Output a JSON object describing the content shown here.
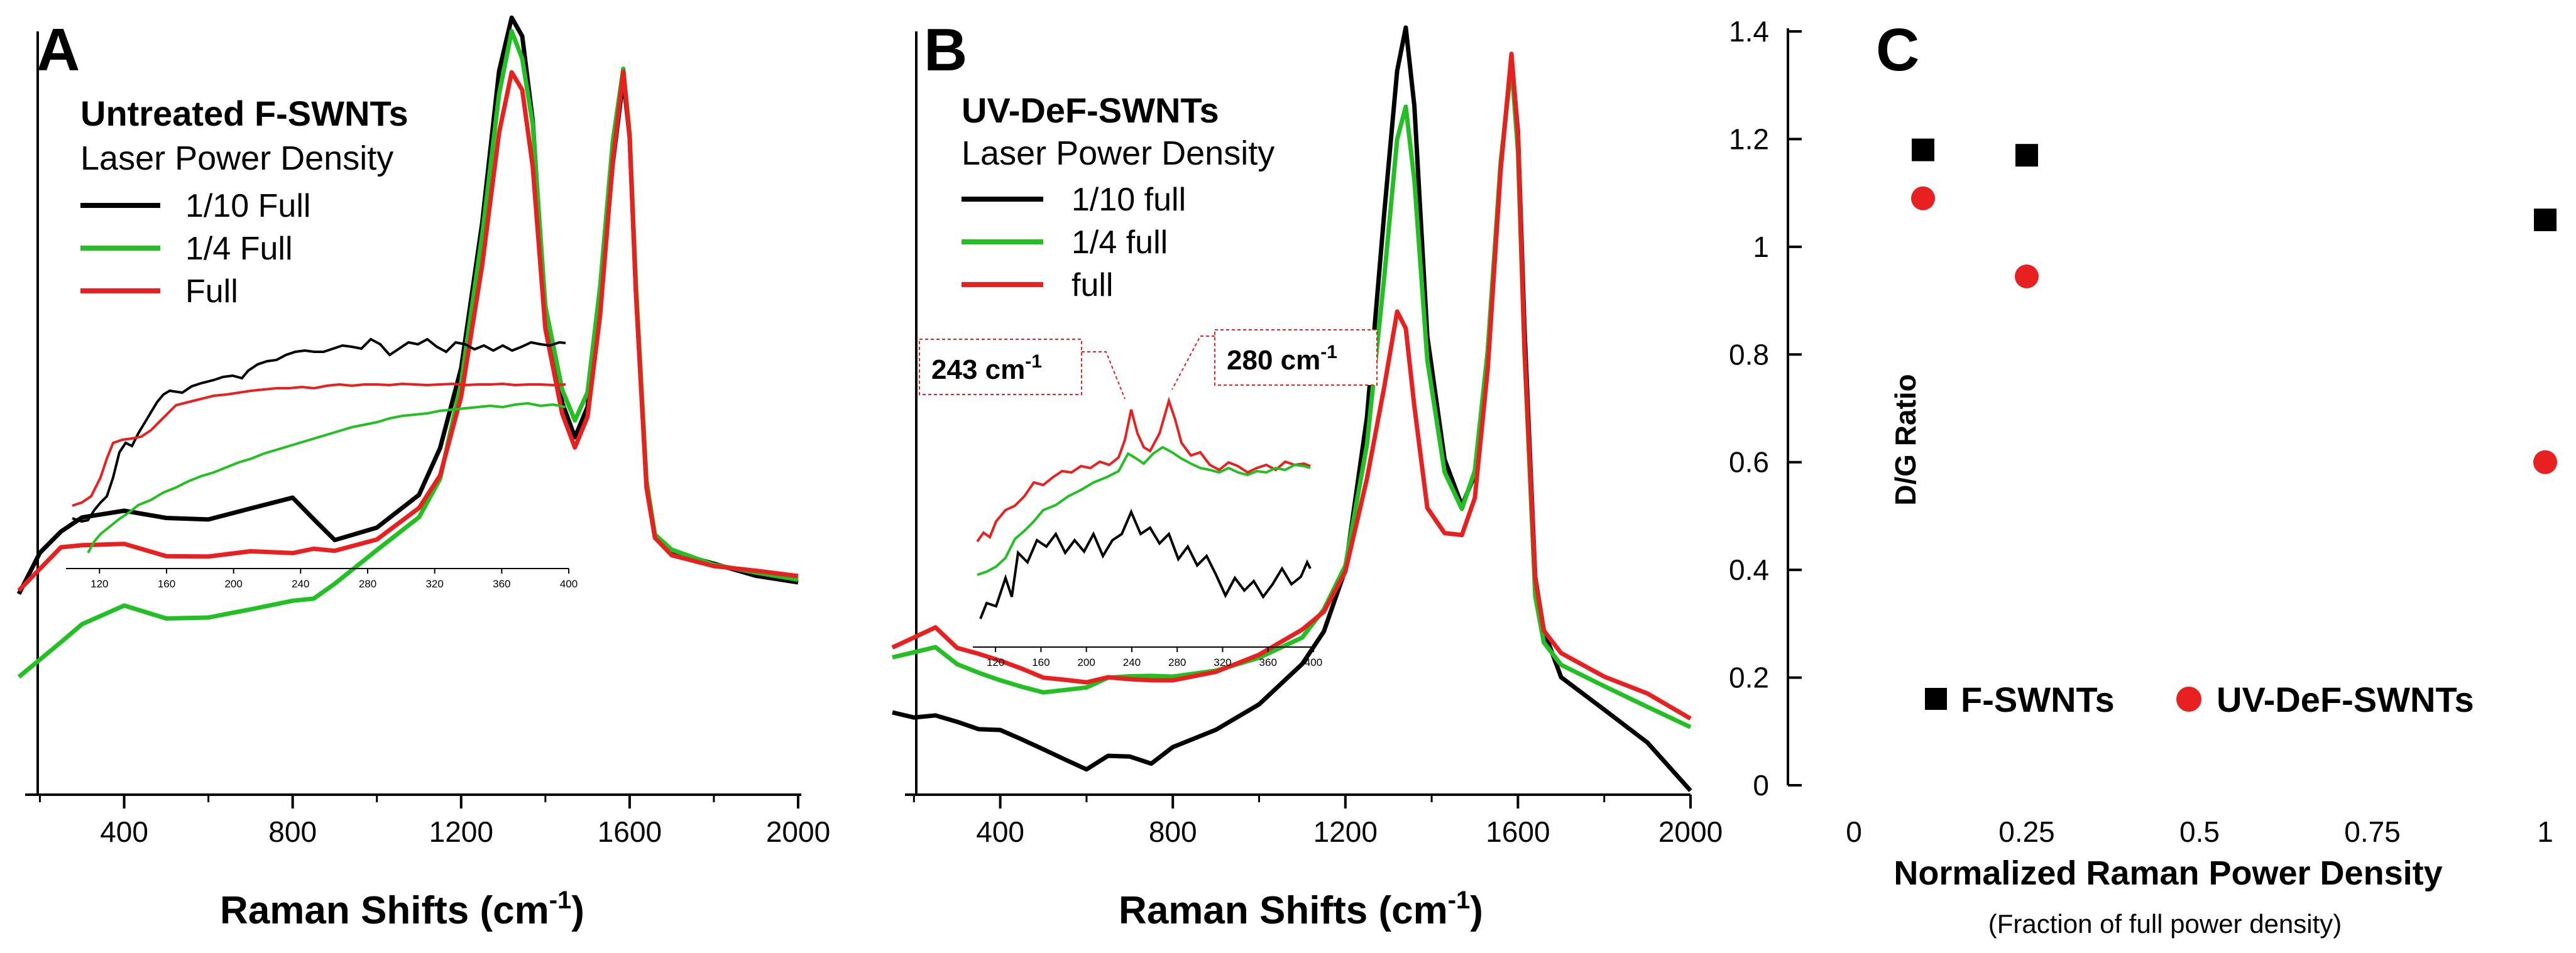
{
  "chart_data": [
    {
      "panel": "A",
      "type": "line",
      "title": "Untreated F-SWNTs",
      "legend_title": "Laser Power Density",
      "xlabel": "Raman Shifts (cm",
      "xlabel_sup": "-1",
      "xlabel_close": ")",
      "xlim": [
        150,
        2000
      ],
      "xticks": [
        "400",
        "800",
        "1200",
        "1600",
        "2000"
      ],
      "legend": [
        {
          "label": "1/10 Full",
          "color": "#000000"
        },
        {
          "label": "1/4 Full",
          "color": "#22c022"
        },
        {
          "label": "Full",
          "color": "#e82020"
        }
      ],
      "series": [
        {
          "name": "1/10 Full",
          "color": "#000000",
          "x": [
            150,
            200,
            250,
            300,
            400,
            500,
            600,
            700,
            800,
            850,
            900,
            1000,
            1100,
            1150,
            1200,
            1250,
            1290,
            1320,
            1345,
            1370,
            1400,
            1440,
            1470,
            1500,
            1530,
            1560,
            1585,
            1600,
            1615,
            1640,
            1660,
            1700,
            1800,
            1900,
            2000
          ],
          "y": [
            0.13,
            0.19,
            0.22,
            0.24,
            0.25,
            0.24,
            0.24,
            0.26,
            0.28,
            0.25,
            0.22,
            0.24,
            0.29,
            0.36,
            0.48,
            0.7,
            0.93,
            1.01,
            0.98,
            0.85,
            0.55,
            0.42,
            0.37,
            0.42,
            0.58,
            0.8,
            0.93,
            0.84,
            0.6,
            0.3,
            0.22,
            0.19,
            0.17,
            0.15,
            0.14
          ]
        },
        {
          "name": "1/4 Full",
          "color": "#22c022",
          "x": [
            150,
            200,
            250,
            300,
            400,
            500,
            600,
            700,
            800,
            850,
            900,
            1000,
            1100,
            1150,
            1200,
            1250,
            1290,
            1320,
            1345,
            1370,
            1400,
            1440,
            1470,
            1500,
            1530,
            1560,
            1585,
            1600,
            1615,
            1640,
            1660,
            1700,
            1800,
            1900,
            2000
          ],
          "y": [
            0.0,
            0.03,
            0.06,
            0.09,
            0.12,
            0.1,
            0.1,
            0.11,
            0.12,
            0.12,
            0.14,
            0.19,
            0.24,
            0.3,
            0.45,
            0.68,
            0.9,
            1.0,
            0.96,
            0.86,
            0.58,
            0.45,
            0.4,
            0.44,
            0.6,
            0.82,
            0.93,
            0.83,
            0.6,
            0.3,
            0.22,
            0.2,
            0.18,
            0.17,
            0.16
          ]
        },
        {
          "name": "Full",
          "color": "#e82020",
          "x": [
            150,
            200,
            250,
            300,
            400,
            500,
            600,
            700,
            800,
            850,
            900,
            1000,
            1100,
            1150,
            1200,
            1250,
            1290,
            1320,
            1345,
            1370,
            1400,
            1440,
            1470,
            1500,
            1530,
            1560,
            1585,
            1600,
            1615,
            1640,
            1660,
            1700,
            1800,
            1900,
            2000
          ],
          "y": [
            0.14,
            0.17,
            0.2,
            0.2,
            0.2,
            0.18,
            0.18,
            0.19,
            0.19,
            0.2,
            0.2,
            0.22,
            0.27,
            0.32,
            0.44,
            0.64,
            0.84,
            0.93,
            0.9,
            0.78,
            0.53,
            0.4,
            0.35,
            0.4,
            0.56,
            0.8,
            0.94,
            0.84,
            0.6,
            0.3,
            0.22,
            0.19,
            0.17,
            0.16,
            0.15
          ]
        }
      ],
      "inset": {
        "xticks": [
          "120",
          "160",
          "200",
          "240",
          "280",
          "320",
          "360",
          "400"
        ],
        "xlim": [
          100,
          400
        ]
      }
    },
    {
      "panel": "B",
      "type": "line",
      "title": "UV-DeF-SWNTs",
      "legend_title": "Laser Power Density",
      "xlabel": "Raman Shifts (cm",
      "xlabel_sup": "-1",
      "xlabel_close": ")",
      "xlim": [
        150,
        2000
      ],
      "xticks": [
        "400",
        "800",
        "1200",
        "1600",
        "2000"
      ],
      "legend": [
        {
          "label": "1/10 full",
          "color": "#000000"
        },
        {
          "label": "1/4 full",
          "color": "#22c022"
        },
        {
          "label": "full",
          "color": "#e82020"
        }
      ],
      "annotations": [
        "243 cm",
        "280 cm"
      ],
      "annotation_sup": "-1",
      "series": [
        {
          "name": "1/10 full",
          "color": "#000000",
          "x": [
            150,
            200,
            250,
            300,
            350,
            400,
            450,
            500,
            550,
            600,
            650,
            700,
            750,
            800,
            900,
            1000,
            1100,
            1150,
            1200,
            1250,
            1290,
            1320,
            1340,
            1360,
            1390,
            1430,
            1470,
            1500,
            1530,
            1560,
            1585,
            1600,
            1615,
            1640,
            1660,
            1700,
            1800,
            1900,
            2000
          ],
          "y": [
            0.1,
            0.09,
            0.09,
            0.08,
            0.07,
            0.07,
            0.06,
            0.05,
            0.04,
            0.03,
            0.05,
            0.05,
            0.04,
            0.06,
            0.08,
            0.11,
            0.16,
            0.2,
            0.28,
            0.48,
            0.75,
            0.94,
            1.0,
            0.9,
            0.6,
            0.44,
            0.38,
            0.42,
            0.58,
            0.82,
            0.96,
            0.86,
            0.6,
            0.27,
            0.2,
            0.14,
            0.1,
            0.06,
            0.0
          ]
        },
        {
          "name": "1/4 full",
          "color": "#22c022",
          "x": [
            150,
            200,
            250,
            300,
            350,
            400,
            450,
            500,
            550,
            600,
            650,
            700,
            750,
            800,
            900,
            1000,
            1100,
            1150,
            1200,
            1250,
            1290,
            1320,
            1340,
            1360,
            1390,
            1430,
            1470,
            1500,
            1530,
            1560,
            1585,
            1600,
            1615,
            1640,
            1660,
            1700,
            1800,
            1900,
            2000
          ],
          "y": [
            0.17,
            0.18,
            0.19,
            0.17,
            0.16,
            0.15,
            0.14,
            0.13,
            0.13,
            0.13,
            0.14,
            0.14,
            0.14,
            0.14,
            0.15,
            0.17,
            0.2,
            0.24,
            0.3,
            0.46,
            0.68,
            0.86,
            0.9,
            0.8,
            0.56,
            0.41,
            0.36,
            0.41,
            0.57,
            0.82,
            0.95,
            0.84,
            0.58,
            0.26,
            0.2,
            0.17,
            0.14,
            0.11,
            0.08
          ]
        },
        {
          "name": "full",
          "color": "#e82020",
          "x": [
            150,
            200,
            250,
            300,
            350,
            400,
            450,
            500,
            550,
            600,
            650,
            700,
            750,
            800,
            900,
            1000,
            1100,
            1150,
            1200,
            1250,
            1290,
            1320,
            1340,
            1360,
            1390,
            1430,
            1470,
            1500,
            1530,
            1560,
            1585,
            1600,
            1615,
            1640,
            1660,
            1700,
            1800,
            1900,
            2000
          ],
          "y": [
            0.19,
            0.2,
            0.21,
            0.18,
            0.17,
            0.16,
            0.15,
            0.14,
            0.14,
            0.14,
            0.15,
            0.15,
            0.15,
            0.15,
            0.16,
            0.18,
            0.21,
            0.23,
            0.28,
            0.4,
            0.52,
            0.62,
            0.6,
            0.5,
            0.37,
            0.34,
            0.34,
            0.39,
            0.56,
            0.82,
            0.97,
            0.86,
            0.58,
            0.27,
            0.2,
            0.17,
            0.14,
            0.12,
            0.09
          ]
        }
      ],
      "inset": {
        "xticks": [
          "120",
          "160",
          "200",
          "240",
          "280",
          "320",
          "360",
          "400"
        ],
        "xlim": [
          100,
          400
        ]
      }
    },
    {
      "panel": "C",
      "type": "scatter",
      "xlabel": "Normalized Raman Power Density",
      "xlabel_sub": "(Fraction of full power density)",
      "ylabel": "D/G Ratio",
      "xlim": [
        0,
        1
      ],
      "ylim": [
        0,
        1.4
      ],
      "xticks": [
        0,
        0.25,
        0.5,
        0.75,
        1
      ],
      "xtick_labels": [
        "0",
        "0.25",
        "0.5",
        "0.75",
        "1"
      ],
      "yticks": [
        0,
        0.2,
        0.4,
        0.6,
        0.8,
        1.0,
        1.2,
        1.4
      ],
      "ytick_labels": [
        "0",
        "0.2",
        "0.4",
        "0.6",
        "0.8",
        "1",
        "1.2",
        "1.4"
      ],
      "series": [
        {
          "name": "F-SWNTs",
          "marker": "square",
          "color": "#000000",
          "x": [
            0.1,
            0.25,
            1.0
          ],
          "y": [
            1.18,
            1.17,
            1.05
          ]
        },
        {
          "name": "UV-DeF-SWNTs",
          "marker": "circle",
          "color": "#e82020",
          "x": [
            0.1,
            0.25,
            1.0
          ],
          "y": [
            1.09,
            0.945,
            0.6
          ]
        }
      ]
    }
  ]
}
